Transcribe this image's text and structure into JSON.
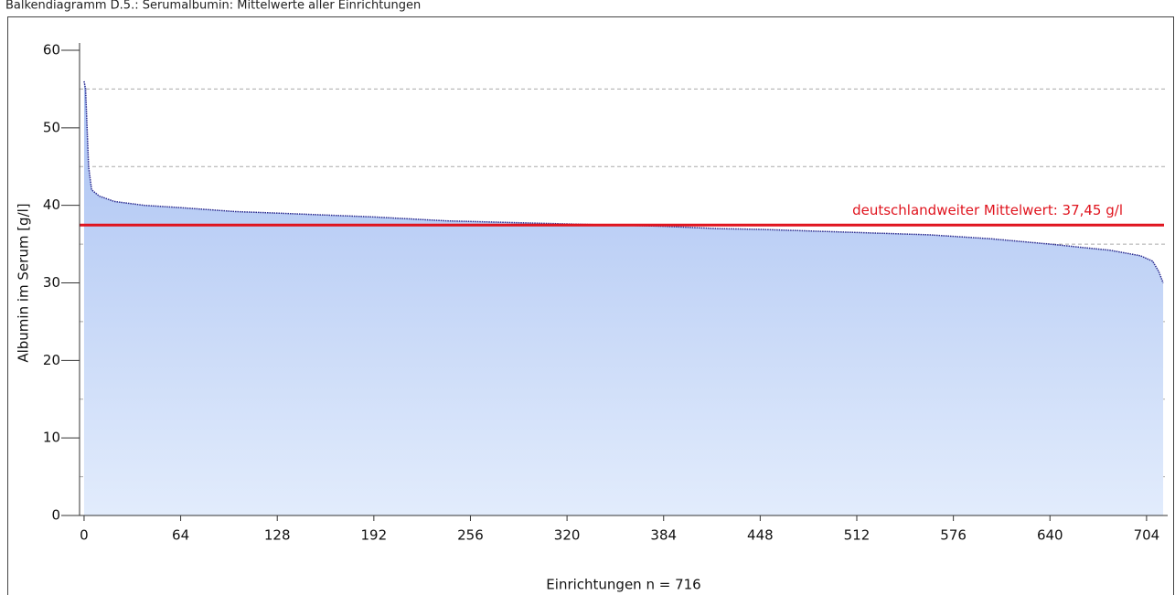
{
  "chart_data": {
    "type": "area",
    "title": "Balkendiagramm D.5.: Serumalbumin: Mittelwerte aller Einrichtungen",
    "x_label": "Einrichtungen n = 716",
    "y_label": "Albumin im Serum [g/l]",
    "x": [
      0,
      1,
      2,
      3,
      5,
      10,
      20,
      40,
      64,
      100,
      128,
      192,
      240,
      280,
      320,
      384,
      420,
      448,
      512,
      560,
      600,
      640,
      680,
      700,
      708,
      712,
      715
    ],
    "values": [
      56,
      55,
      50,
      45,
      42,
      41.2,
      40.5,
      40,
      39.7,
      39.2,
      39,
      38.5,
      38,
      37.8,
      37.6,
      37.3,
      37,
      36.9,
      36.5,
      36.2,
      35.7,
      35,
      34.2,
      33.5,
      32.8,
      31.5,
      30
    ],
    "color": "#2b2b8f",
    "fill_top": "#a9c1f2",
    "fill_bottom": "#e2ecfc",
    "xlim": [
      -3,
      718
    ],
    "ylim": [
      0,
      60
    ],
    "xticks": [
      0,
      64,
      128,
      192,
      256,
      320,
      384,
      448,
      512,
      576,
      640,
      704
    ],
    "yticks": [
      0,
      10,
      20,
      30,
      40,
      50,
      60
    ],
    "grid_values": [
      5,
      15,
      25,
      35,
      45,
      55
    ],
    "mean_line": {
      "value": 37.45,
      "label": "deutschlandweiter Mittelwert: 37,45 g/l",
      "color": "#e0141e"
    }
  }
}
